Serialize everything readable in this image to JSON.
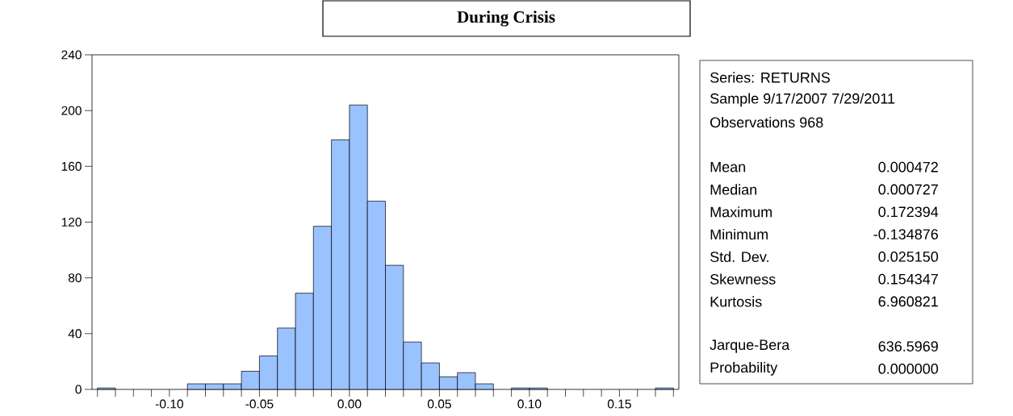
{
  "chart_data": {
    "type": "histogram",
    "title": "During Crisis",
    "bins": [
      -0.14,
      -0.13,
      -0.12,
      -0.11,
      -0.1,
      -0.09,
      -0.08,
      -0.07,
      -0.06,
      -0.05,
      -0.04,
      -0.03,
      -0.02,
      -0.01,
      0.0,
      0.01,
      0.02,
      0.03,
      0.04,
      0.05,
      0.06,
      0.07,
      0.08,
      0.09,
      0.1,
      0.11,
      0.12,
      0.13,
      0.14,
      0.15,
      0.16,
      0.17,
      0.18
    ],
    "values": [
      1,
      0,
      0,
      0,
      0,
      4,
      4,
      4,
      13,
      24,
      44,
      69,
      117,
      179,
      204,
      135,
      89,
      34,
      19,
      9,
      12,
      4,
      0,
      1,
      1,
      0,
      0,
      0,
      0,
      0,
      0,
      1
    ],
    "color": "#99c2ff",
    "xlim": [
      -0.143,
      0.183
    ],
    "xticks": [
      {
        "value": -0.14,
        "label": null
      },
      {
        "value": -0.13,
        "label": null
      },
      {
        "value": -0.12,
        "label": null
      },
      {
        "value": -0.11,
        "label": null
      },
      {
        "value": -0.1,
        "label": "-0.10"
      },
      {
        "value": -0.09,
        "label": null
      },
      {
        "value": -0.08,
        "label": null
      },
      {
        "value": -0.07,
        "label": null
      },
      {
        "value": -0.06,
        "label": null
      },
      {
        "value": -0.05,
        "label": "-0.05"
      },
      {
        "value": -0.04,
        "label": null
      },
      {
        "value": -0.03,
        "label": null
      },
      {
        "value": -0.02,
        "label": null
      },
      {
        "value": -0.01,
        "label": null
      },
      {
        "value": 0.0,
        "label": "0.00"
      },
      {
        "value": 0.01,
        "label": null
      },
      {
        "value": 0.02,
        "label": null
      },
      {
        "value": 0.03,
        "label": null
      },
      {
        "value": 0.04,
        "label": null
      },
      {
        "value": 0.05,
        "label": "0.05"
      },
      {
        "value": 0.06,
        "label": null
      },
      {
        "value": 0.07,
        "label": null
      },
      {
        "value": 0.08,
        "label": null
      },
      {
        "value": 0.09,
        "label": null
      },
      {
        "value": 0.1,
        "label": "0.10"
      },
      {
        "value": 0.11,
        "label": null
      },
      {
        "value": 0.12,
        "label": null
      },
      {
        "value": 0.13,
        "label": null
      },
      {
        "value": 0.14,
        "label": null
      },
      {
        "value": 0.15,
        "label": "0.15"
      },
      {
        "value": 0.16,
        "label": null
      },
      {
        "value": 0.17,
        "label": null
      },
      {
        "value": 0.18,
        "label": null
      }
    ],
    "ylim": [
      0,
      240
    ],
    "yticks": [
      0,
      40,
      80,
      120,
      160,
      200,
      240
    ],
    "annotations": [
      "Series: RETURNS",
      "Sample 9/17/2007 7/29/2011",
      "Observations 968",
      "Mean",
      "0.000472",
      "Median",
      "0.000727",
      "Maximum",
      "0.172394",
      "Minimum",
      "-0.134876",
      "Std. Dev.",
      "0.025150",
      "Skewness",
      "0.154347",
      "Kurtosis",
      "6.960821",
      "Jarque-Bera",
      "636.5969",
      "Probability",
      "0.000000"
    ]
  }
}
